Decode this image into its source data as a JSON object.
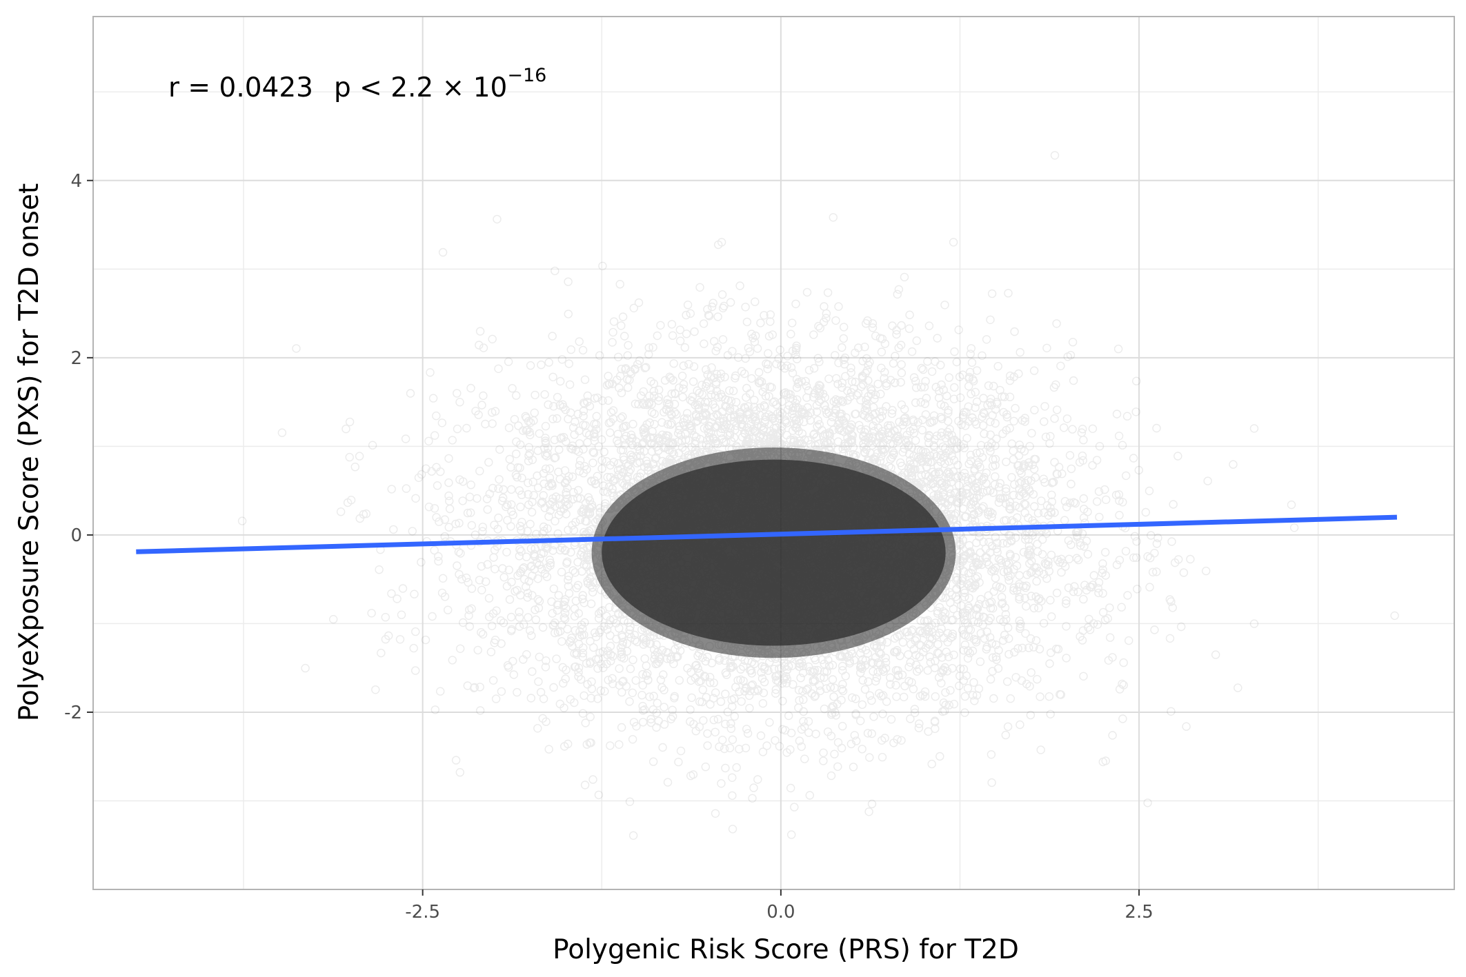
{
  "chart_data": {
    "type": "scatter",
    "title": "",
    "xlabel": "Polygenic Risk Score (PRS) for T2D",
    "ylabel": "PolyeXposure Score (PXS) for T2D onset",
    "xlim": [
      -4.8,
      4.7
    ],
    "ylim": [
      -4.0,
      5.85
    ],
    "x_ticks": [
      -2.5,
      0.0,
      2.5
    ],
    "x_tick_labels": [
      "-2.5",
      "0.0",
      "2.5"
    ],
    "y_ticks": [
      -2,
      0,
      2,
      4
    ],
    "y_tick_labels": [
      "-2",
      "0",
      "2",
      "4"
    ],
    "grid": true,
    "points": {
      "description_marker": "open circles, very low opacity, dense bivariate cloud",
      "x_range": [
        -4.5,
        4.3
      ],
      "y_range": [
        -3.5,
        5.4
      ],
      "center": [
        0.0,
        0.0
      ],
      "sd": [
        1.0,
        1.0
      ]
    },
    "fit_line": {
      "x": [
        -4.5,
        4.3
      ],
      "y": [
        -0.19,
        0.2
      ],
      "color": "#3366FF"
    },
    "annotation": {
      "r_text": "r = 0.0423",
      "p_text": "p < 2.2 × 10",
      "p_exponent": "−16"
    },
    "colors": {
      "points": "#262626",
      "fit_line": "#3366FF",
      "grid_major": "#dcdcdc",
      "grid_minor": "#ececec",
      "panel_border": "#b3b3b3"
    }
  }
}
